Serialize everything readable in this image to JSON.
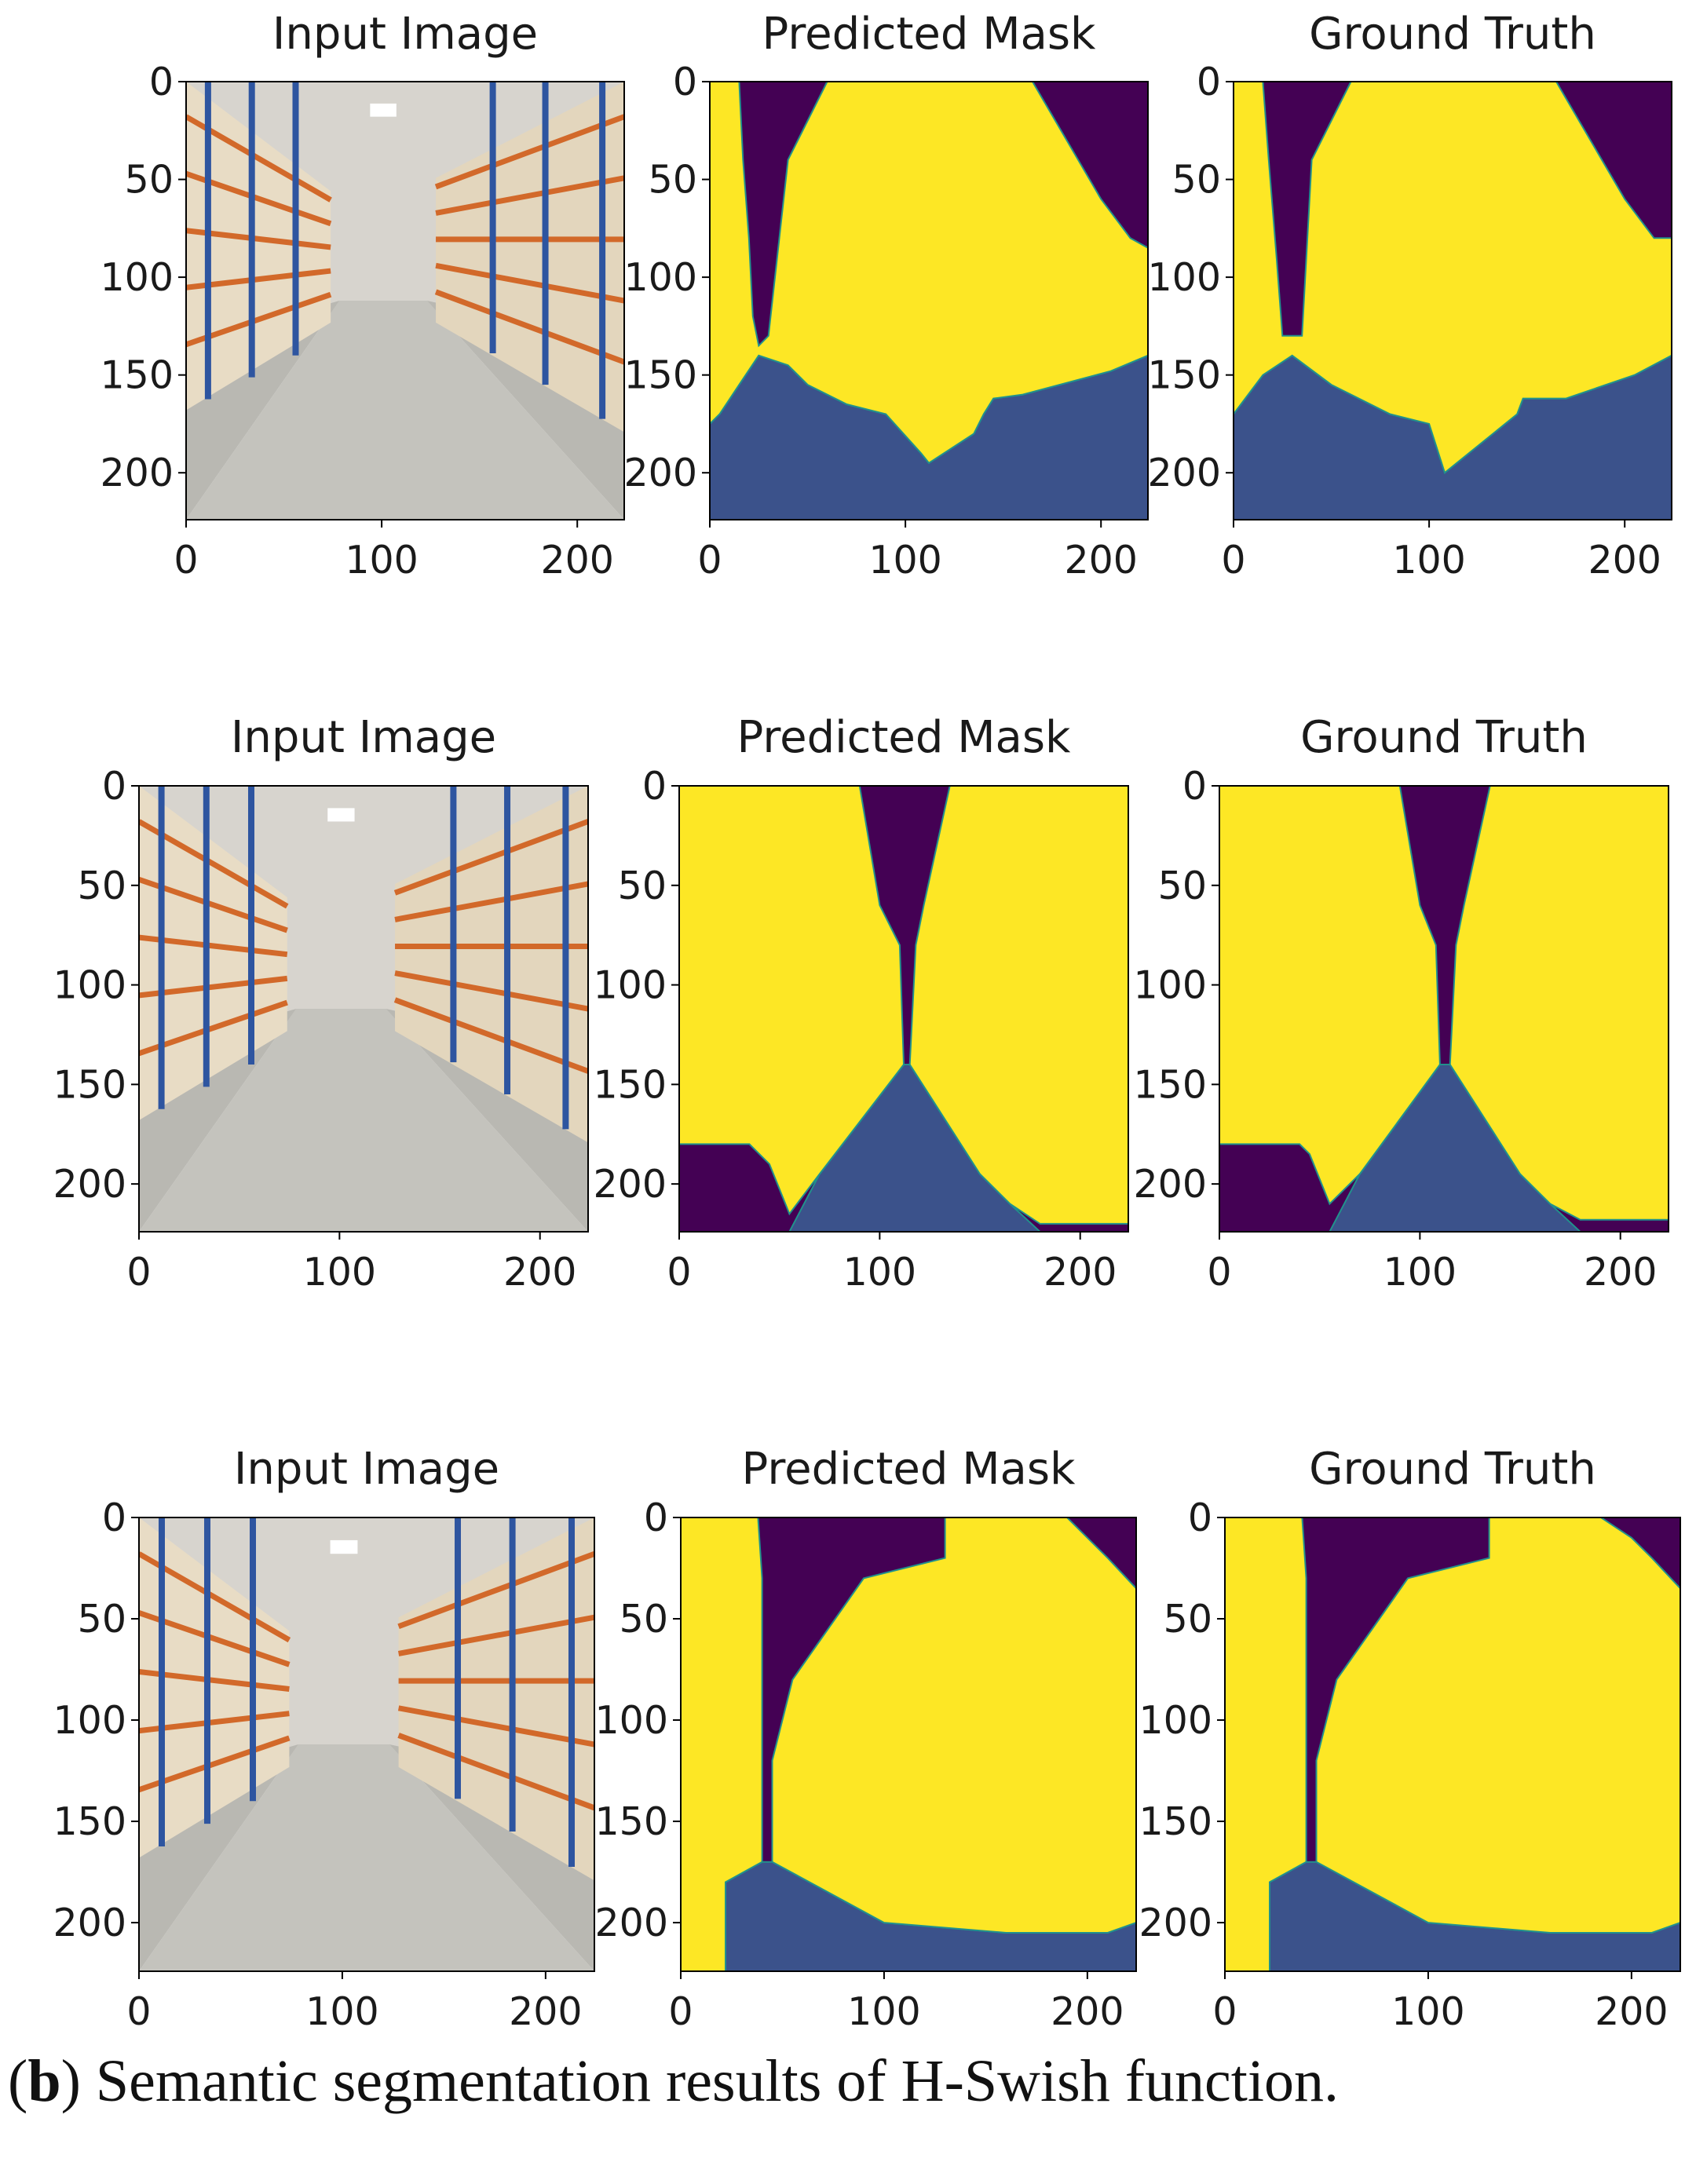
{
  "figure": {
    "caption_open": "(",
    "caption_bold": "b",
    "caption_rest": ") Semantic segmentation results of H-Swish function."
  },
  "colors": {
    "background": "#440154",
    "rack": "#fde725",
    "floor": "#3b528b",
    "edge": "#21918c"
  },
  "grid": {
    "row_titles": [
      "Input Image",
      "Predicted Mask",
      "Ground Truth"
    ],
    "axis_tick_labels": [
      "0",
      "50",
      "100",
      "150",
      "200"
    ],
    "axis_ticks": [
      0,
      50,
      100,
      150,
      200
    ],
    "axis_range": [
      0,
      224
    ]
  },
  "chart_data": [
    {
      "type": "image",
      "row": 1,
      "col": 1,
      "title": "Input Image",
      "xlim": [
        0,
        224
      ],
      "ylim": [
        224,
        0
      ],
      "xticks": [
        0,
        100,
        200
      ],
      "yticks": [
        0,
        50,
        100,
        150,
        200
      ]
    },
    {
      "type": "heatmap",
      "row": 1,
      "col": 2,
      "title": "Predicted Mask",
      "xlim": [
        0,
        224
      ],
      "ylim": [
        224,
        0
      ],
      "xticks": [
        0,
        100,
        200
      ],
      "yticks": [
        0,
        50,
        100,
        150,
        200
      ]
    },
    {
      "type": "heatmap",
      "row": 1,
      "col": 3,
      "title": "Ground Truth",
      "xlim": [
        0,
        224
      ],
      "ylim": [
        224,
        0
      ],
      "xticks": [
        0,
        100,
        200
      ],
      "yticks": [
        0,
        50,
        100,
        150,
        200
      ]
    },
    {
      "type": "image",
      "row": 2,
      "col": 1,
      "title": "Input Image",
      "xlim": [
        0,
        224
      ],
      "ylim": [
        224,
        0
      ],
      "xticks": [
        0,
        100,
        200
      ],
      "yticks": [
        0,
        50,
        100,
        150,
        200
      ]
    },
    {
      "type": "heatmap",
      "row": 2,
      "col": 2,
      "title": "Predicted Mask",
      "xlim": [
        0,
        224
      ],
      "ylim": [
        224,
        0
      ],
      "xticks": [
        0,
        100,
        200
      ],
      "yticks": [
        0,
        50,
        100,
        150,
        200
      ]
    },
    {
      "type": "heatmap",
      "row": 2,
      "col": 3,
      "title": "Ground Truth",
      "xlim": [
        0,
        224
      ],
      "ylim": [
        224,
        0
      ],
      "xticks": [
        0,
        100,
        200
      ],
      "yticks": [
        0,
        50,
        100,
        150,
        200
      ]
    },
    {
      "type": "image",
      "row": 3,
      "col": 1,
      "title": "Input Image",
      "xlim": [
        0,
        224
      ],
      "ylim": [
        224,
        0
      ],
      "xticks": [
        0,
        100,
        200
      ],
      "yticks": [
        0,
        50,
        100,
        150,
        200
      ]
    },
    {
      "type": "heatmap",
      "row": 3,
      "col": 2,
      "title": "Predicted Mask",
      "xlim": [
        0,
        224
      ],
      "ylim": [
        224,
        0
      ],
      "xticks": [
        0,
        100,
        200
      ],
      "yticks": [
        0,
        50,
        100,
        150,
        200
      ]
    },
    {
      "type": "heatmap",
      "row": 3,
      "col": 3,
      "title": "Ground Truth",
      "xlim": [
        0,
        224
      ],
      "ylim": [
        224,
        0
      ],
      "xticks": [
        0,
        100,
        200
      ],
      "yticks": [
        0,
        50,
        100,
        150,
        200
      ]
    }
  ]
}
